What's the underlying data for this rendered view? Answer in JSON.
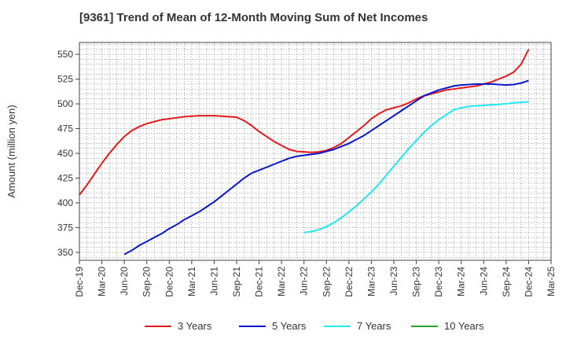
{
  "chart_data": {
    "type": "line",
    "title": "[9361]  Trend of Mean of 12-Month Moving Sum of Net Incomes",
    "ylabel": "Amount (million yen)",
    "xlabel": "",
    "ylim": [
      342,
      562
    ],
    "yticks": [
      350,
      375,
      400,
      425,
      450,
      475,
      500,
      525,
      550
    ],
    "xticks": [
      "Dec-19",
      "Mar-20",
      "Jun-20",
      "Sep-20",
      "Dec-20",
      "Mar-21",
      "Jun-21",
      "Sep-21",
      "Dec-21",
      "Mar-22",
      "Jun-22",
      "Sep-22",
      "Dec-22",
      "Mar-23",
      "Jun-23",
      "Sep-23",
      "Dec-23",
      "Mar-24",
      "Jun-24",
      "Sep-24",
      "Dec-24",
      "Mar-25"
    ],
    "grid": true,
    "legend_position": "bottom",
    "series": [
      {
        "name": "3 Years",
        "color": "#e31a1c",
        "points": [
          [
            "Dec-19",
            408
          ],
          [
            "Jan-20",
            418
          ],
          [
            "Feb-20",
            429
          ],
          [
            "Mar-20",
            440
          ],
          [
            "Apr-20",
            450
          ],
          [
            "May-20",
            459
          ],
          [
            "Jun-20",
            467
          ],
          [
            "Jul-20",
            473
          ],
          [
            "Aug-20",
            477
          ],
          [
            "Sep-20",
            480
          ],
          [
            "Oct-20",
            482
          ],
          [
            "Nov-20",
            484
          ],
          [
            "Dec-20",
            485
          ],
          [
            "Jan-21",
            486
          ],
          [
            "Feb-21",
            487
          ],
          [
            "Mar-21",
            487.5
          ],
          [
            "Apr-21",
            488
          ],
          [
            "May-21",
            488
          ],
          [
            "Jun-21",
            488
          ],
          [
            "Jul-21",
            487.5
          ],
          [
            "Aug-21",
            487
          ],
          [
            "Sep-21",
            486.5
          ],
          [
            "Oct-21",
            483
          ],
          [
            "Nov-21",
            478
          ],
          [
            "Dec-21",
            472
          ],
          [
            "Jan-22",
            467
          ],
          [
            "Feb-22",
            462
          ],
          [
            "Mar-22",
            458
          ],
          [
            "Apr-22",
            454
          ],
          [
            "May-22",
            452
          ],
          [
            "Jun-22",
            451.5
          ],
          [
            "Jul-22",
            451
          ],
          [
            "Aug-22",
            451.5
          ],
          [
            "Sep-22",
            453
          ],
          [
            "Oct-22",
            456
          ],
          [
            "Nov-22",
            460
          ],
          [
            "Dec-22",
            466
          ],
          [
            "Jan-23",
            472
          ],
          [
            "Feb-23",
            478
          ],
          [
            "Mar-23",
            485
          ],
          [
            "Apr-23",
            490
          ],
          [
            "May-23",
            494
          ],
          [
            "Jun-23",
            496
          ],
          [
            "Jul-23",
            498
          ],
          [
            "Aug-23",
            501
          ],
          [
            "Sep-23",
            505
          ],
          [
            "Oct-23",
            508
          ],
          [
            "Nov-23",
            510
          ],
          [
            "Dec-23",
            512
          ],
          [
            "Jan-24",
            514
          ],
          [
            "Feb-24",
            515
          ],
          [
            "Mar-24",
            516
          ],
          [
            "Apr-24",
            517
          ],
          [
            "May-24",
            518
          ],
          [
            "Jun-24",
            520
          ],
          [
            "Jul-24",
            522
          ],
          [
            "Aug-24",
            525
          ],
          [
            "Sep-24",
            528
          ],
          [
            "Oct-24",
            532
          ],
          [
            "Nov-24",
            540
          ],
          [
            "Dec-24",
            555
          ]
        ]
      },
      {
        "name": "5 Years",
        "color": "#0a16c8",
        "points": [
          [
            "Jun-20",
            348
          ],
          [
            "Jul-20",
            352
          ],
          [
            "Aug-20",
            357
          ],
          [
            "Sep-20",
            361
          ],
          [
            "Oct-20",
            365
          ],
          [
            "Nov-20",
            369
          ],
          [
            "Dec-20",
            374
          ],
          [
            "Jan-21",
            378
          ],
          [
            "Feb-21",
            383
          ],
          [
            "Mar-21",
            387
          ],
          [
            "Apr-21",
            391
          ],
          [
            "May-21",
            396
          ],
          [
            "Jun-21",
            401
          ],
          [
            "Jul-21",
            407
          ],
          [
            "Aug-21",
            413
          ],
          [
            "Sep-21",
            419
          ],
          [
            "Oct-21",
            425
          ],
          [
            "Nov-21",
            430
          ],
          [
            "Dec-21",
            433
          ],
          [
            "Jan-22",
            436
          ],
          [
            "Feb-22",
            439
          ],
          [
            "Mar-22",
            442
          ],
          [
            "Apr-22",
            445
          ],
          [
            "May-22",
            447
          ],
          [
            "Jun-22",
            448
          ],
          [
            "Jul-22",
            449
          ],
          [
            "Aug-22",
            450
          ],
          [
            "Sep-22",
            452
          ],
          [
            "Oct-22",
            454
          ],
          [
            "Nov-22",
            457
          ],
          [
            "Dec-22",
            460
          ],
          [
            "Jan-23",
            464
          ],
          [
            "Feb-23",
            468
          ],
          [
            "Mar-23",
            473
          ],
          [
            "Apr-23",
            478
          ],
          [
            "May-23",
            483
          ],
          [
            "Jun-23",
            488
          ],
          [
            "Jul-23",
            493
          ],
          [
            "Aug-23",
            498
          ],
          [
            "Sep-23",
            503
          ],
          [
            "Oct-23",
            508
          ],
          [
            "Nov-23",
            511
          ],
          [
            "Dec-23",
            514
          ],
          [
            "Jan-24",
            516
          ],
          [
            "Feb-24",
            518
          ],
          [
            "Mar-24",
            519
          ],
          [
            "Apr-24",
            519.5
          ],
          [
            "May-24",
            520
          ],
          [
            "Jun-24",
            520
          ],
          [
            "Jul-24",
            520
          ],
          [
            "Aug-24",
            519.5
          ],
          [
            "Sep-24",
            519
          ],
          [
            "Oct-24",
            519.5
          ],
          [
            "Nov-24",
            521
          ],
          [
            "Dec-24",
            523.5
          ]
        ]
      },
      {
        "name": "7 Years",
        "color": "#22e8f0",
        "points": [
          [
            "Jun-22",
            370
          ],
          [
            "Jul-22",
            371
          ],
          [
            "Aug-22",
            373
          ],
          [
            "Sep-22",
            376
          ],
          [
            "Oct-22",
            380
          ],
          [
            "Nov-22",
            385
          ],
          [
            "Dec-22",
            391
          ],
          [
            "Jan-23",
            397
          ],
          [
            "Feb-23",
            404
          ],
          [
            "Mar-23",
            411
          ],
          [
            "Apr-23",
            419
          ],
          [
            "May-23",
            428
          ],
          [
            "Jun-23",
            437
          ],
          [
            "Jul-23",
            446
          ],
          [
            "Aug-23",
            455
          ],
          [
            "Sep-23",
            463
          ],
          [
            "Oct-23",
            471
          ],
          [
            "Nov-23",
            478
          ],
          [
            "Dec-23",
            484
          ],
          [
            "Jan-24",
            489
          ],
          [
            "Feb-24",
            494
          ],
          [
            "Mar-24",
            496
          ],
          [
            "Apr-24",
            497.5
          ],
          [
            "May-24",
            498
          ],
          [
            "Jun-24",
            498.5
          ],
          [
            "Jul-24",
            499
          ],
          [
            "Aug-24",
            499.5
          ],
          [
            "Sep-24",
            500
          ],
          [
            "Oct-24",
            501
          ],
          [
            "Nov-24",
            501.5
          ],
          [
            "Dec-24",
            502
          ]
        ]
      },
      {
        "name": "10 Years",
        "color": "#2ca02c",
        "points": []
      }
    ]
  }
}
